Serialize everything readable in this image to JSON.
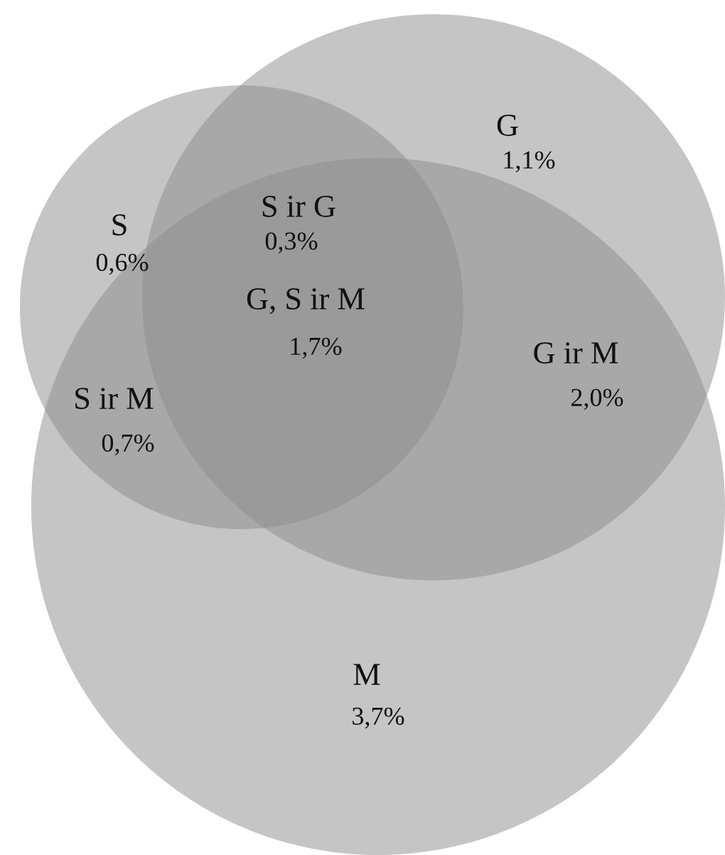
{
  "chart_data": {
    "type": "other",
    "categories": [
      "S",
      "S ir G",
      "G",
      "G, S ir M",
      "G ir M",
      "S ir M",
      "M"
    ],
    "values": [
      0.6,
      0.3,
      1.1,
      1.7,
      2.0,
      0.7,
      3.7
    ],
    "value_labels": [
      "0,6%",
      "0,3%",
      "1,1%",
      "1,7%",
      "2,0%",
      "0,7%",
      "3,7%"
    ]
  }
}
